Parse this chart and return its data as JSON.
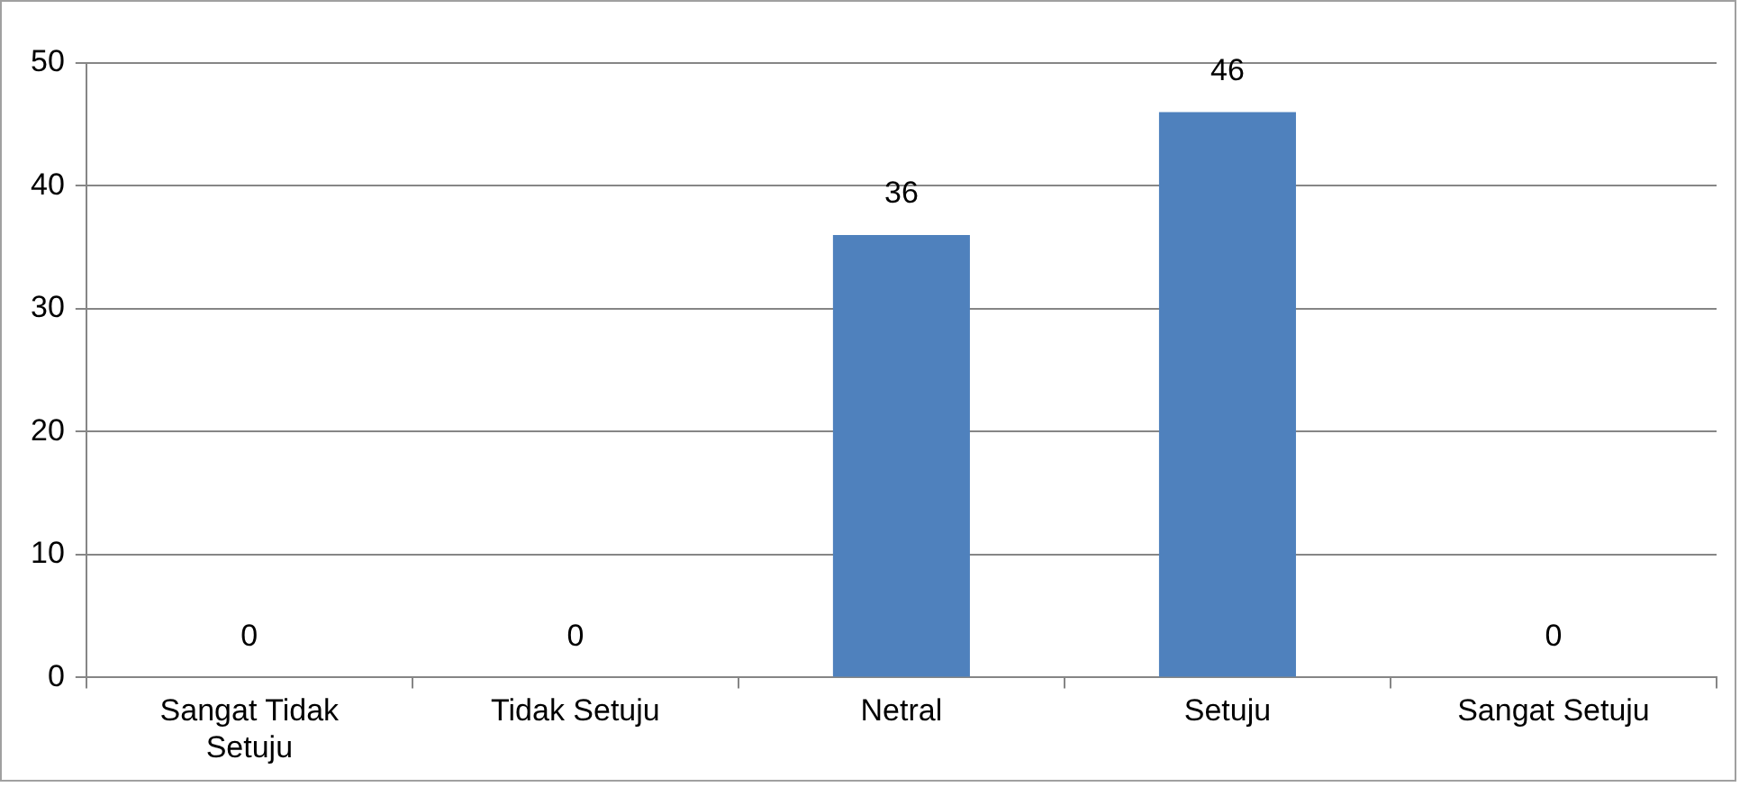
{
  "chart_data": {
    "type": "bar",
    "categories": [
      "Sangat Tidak Setuju",
      "Tidak Setuju",
      "Netral",
      "Setuju",
      "Sangat Setuju"
    ],
    "values": [
      0,
      0,
      36,
      46,
      0
    ],
    "color": "#4f81bd",
    "ylim": [
      0,
      50
    ],
    "yticks": [
      0,
      10,
      20,
      30,
      40,
      50
    ],
    "grid": "y",
    "data_labels": true
  }
}
